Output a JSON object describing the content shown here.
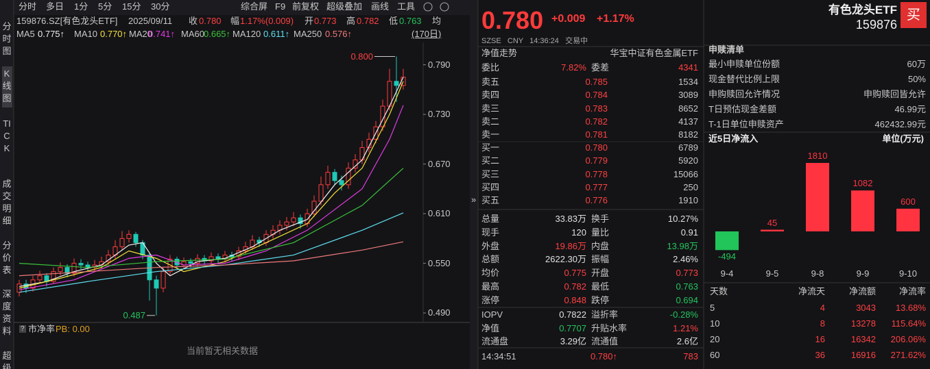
{
  "toolbar": {
    "periods": [
      "分时",
      "多日",
      "1分",
      "5分",
      "15分",
      "30分"
    ],
    "tools": [
      "综合屏",
      "F9",
      "前复权",
      "超级叠加",
      "画线",
      "工具"
    ]
  },
  "side_tabs": [
    "分时图",
    "K线图",
    "TICK",
    "成交明细",
    "分价表",
    "深度资料",
    "超级"
  ],
  "info_bar": {
    "code": "159876.SZ[有色龙头ETF]",
    "date": "2025/09/11",
    "items": [
      {
        "label": "收",
        "value": "0.780",
        "color": "#ff4040"
      },
      {
        "label": "幅",
        "value": "1.17%(0.009)",
        "color": "#ff4040"
      },
      {
        "label": "开",
        "value": "0.773",
        "color": "#ff4040"
      },
      {
        "label": "高",
        "value": "0.782",
        "color": "#ff4040"
      },
      {
        "label": "低",
        "value": "0.763",
        "color": "#25c45b"
      }
    ],
    "avg_label": "均",
    "bar_count": "(170日)"
  },
  "kline": {
    "type": "candlestick",
    "ylim": [
      0.481,
      0.817
    ],
    "yticks": [
      {
        "value": 0.79,
        "label": "0.790"
      },
      {
        "value": 0.73,
        "label": "0.730"
      },
      {
        "value": 0.67,
        "label": "0.670"
      },
      {
        "value": 0.61,
        "label": "0.610"
      },
      {
        "value": 0.55,
        "label": "0.550"
      },
      {
        "value": 0.49,
        "label": "0.490"
      }
    ],
    "up_color": "#ff3b3b",
    "down_color": "#1fc9b4",
    "open": [
      0.515,
      0.525,
      0.52,
      0.53,
      0.535,
      0.528,
      0.54,
      0.545,
      0.538,
      0.55,
      0.548,
      0.545,
      0.548,
      0.552,
      0.56,
      0.57,
      0.58,
      0.585,
      0.575,
      0.56,
      0.53,
      0.52,
      0.54,
      0.555,
      0.548,
      0.552,
      0.55,
      0.556,
      0.553,
      0.558,
      0.555,
      0.56,
      0.558,
      0.565,
      0.57,
      0.578,
      0.575,
      0.585,
      0.59,
      0.596,
      0.6,
      0.605,
      0.598,
      0.61,
      0.625,
      0.645,
      0.66,
      0.65,
      0.645,
      0.665,
      0.675,
      0.69,
      0.7,
      0.715,
      0.74,
      0.77,
      0.765
    ],
    "high": [
      0.53,
      0.53,
      0.535,
      0.541,
      0.538,
      0.545,
      0.551,
      0.549,
      0.556,
      0.555,
      0.552,
      0.554,
      0.558,
      0.566,
      0.578,
      0.589,
      0.59,
      0.588,
      0.578,
      0.562,
      0.535,
      0.546,
      0.56,
      0.558,
      0.557,
      0.556,
      0.561,
      0.56,
      0.563,
      0.562,
      0.565,
      0.564,
      0.57,
      0.576,
      0.584,
      0.582,
      0.59,
      0.596,
      0.602,
      0.606,
      0.612,
      0.609,
      0.616,
      0.632,
      0.655,
      0.668,
      0.664,
      0.656,
      0.672,
      0.682,
      0.698,
      0.708,
      0.722,
      0.748,
      0.785,
      0.8,
      0.785
    ],
    "low": [
      0.51,
      0.514,
      0.516,
      0.526,
      0.522,
      0.525,
      0.535,
      0.533,
      0.534,
      0.543,
      0.54,
      0.541,
      0.543,
      0.548,
      0.556,
      0.566,
      0.575,
      0.57,
      0.555,
      0.505,
      0.487,
      0.515,
      0.536,
      0.543,
      0.544,
      0.545,
      0.546,
      0.548,
      0.549,
      0.55,
      0.551,
      0.553,
      0.554,
      0.561,
      0.566,
      0.57,
      0.571,
      0.58,
      0.585,
      0.59,
      0.595,
      0.592,
      0.594,
      0.606,
      0.62,
      0.64,
      0.644,
      0.638,
      0.64,
      0.66,
      0.67,
      0.684,
      0.695,
      0.71,
      0.735,
      0.745,
      0.76
    ],
    "close": [
      0.525,
      0.52,
      0.53,
      0.535,
      0.528,
      0.54,
      0.545,
      0.538,
      0.55,
      0.548,
      0.545,
      0.548,
      0.552,
      0.56,
      0.57,
      0.58,
      0.585,
      0.575,
      0.56,
      0.53,
      0.52,
      0.54,
      0.555,
      0.548,
      0.552,
      0.55,
      0.556,
      0.553,
      0.558,
      0.555,
      0.56,
      0.558,
      0.565,
      0.57,
      0.578,
      0.575,
      0.585,
      0.59,
      0.596,
      0.6,
      0.605,
      0.598,
      0.61,
      0.625,
      0.645,
      0.66,
      0.65,
      0.645,
      0.665,
      0.675,
      0.69,
      0.7,
      0.715,
      0.74,
      0.77,
      0.765,
      0.775
    ],
    "max_label": "0.800",
    "min_label": "0.487",
    "ma": [
      {
        "name": "MA5",
        "legend": "0.775↑",
        "color": "#f0f0f0",
        "x": [
          0,
          4,
          8,
          12,
          16,
          18,
          20,
          22,
          26,
          30,
          34,
          38,
          42,
          46,
          50,
          54,
          56
        ],
        "values": [
          0.522,
          0.528,
          0.54,
          0.548,
          0.572,
          0.575,
          0.55,
          0.535,
          0.552,
          0.556,
          0.57,
          0.59,
          0.603,
          0.645,
          0.675,
          0.74,
          0.775
        ]
      },
      {
        "name": "MA10",
        "legend": "0.770↑",
        "color": "#f5e23a",
        "x": [
          0,
          6,
          12,
          16,
          20,
          24,
          30,
          36,
          42,
          46,
          50,
          54,
          56
        ],
        "values": [
          0.52,
          0.532,
          0.545,
          0.565,
          0.556,
          0.54,
          0.552,
          0.575,
          0.598,
          0.635,
          0.665,
          0.73,
          0.77
        ]
      },
      {
        "name": "MA20",
        "legend": "0.741↑",
        "color": "#e23be2",
        "x": [
          0,
          8,
          16,
          20,
          24,
          30,
          36,
          42,
          46,
          50,
          54,
          56
        ],
        "values": [
          0.518,
          0.53,
          0.556,
          0.56,
          0.548,
          0.55,
          0.565,
          0.59,
          0.615,
          0.64,
          0.7,
          0.741
        ]
      },
      {
        "name": "MA60",
        "legend": "0.665↑",
        "color": "#3bc43b",
        "x": [
          0,
          10,
          20,
          30,
          40,
          50,
          56
        ],
        "values": [
          0.55,
          0.545,
          0.552,
          0.555,
          0.575,
          0.62,
          0.665
        ]
      },
      {
        "name": "MA120",
        "legend": "0.611↑",
        "color": "#5fe0f0",
        "x": [
          0,
          10,
          20,
          30,
          40,
          50,
          56
        ],
        "values": [
          0.515,
          0.528,
          0.54,
          0.548,
          0.56,
          0.59,
          0.611
        ]
      },
      {
        "name": "MA250",
        "legend": "0.576↑",
        "color": "#f07a7a",
        "x": [
          0,
          10,
          20,
          30,
          40,
          50,
          56
        ],
        "values": [
          0.535,
          0.54,
          0.545,
          0.548,
          0.553,
          0.566,
          0.576
        ]
      }
    ]
  },
  "lower_pane": {
    "help": "?",
    "title": "市净率",
    "pb": "PB: 0.00",
    "empty": "当前暂无相关数据"
  },
  "collapse_icon": "»",
  "quote": {
    "price": "0.780",
    "change": "+0.009",
    "pct": "+1.17%",
    "status": "SZSE   CNY   14:36:24   交易中",
    "name": "有色龙头ETF",
    "code": "159876",
    "buy": "买"
  },
  "order_book": {
    "header_left": "净值走势",
    "header_right": "华宝中证有色金属ETF",
    "ratio": [
      "委比",
      "7.82%",
      "委差",
      "4341"
    ],
    "asks": [
      [
        "卖五",
        "0.785",
        "1534"
      ],
      [
        "卖四",
        "0.784",
        "3089"
      ],
      [
        "卖三",
        "0.783",
        "8652"
      ],
      [
        "卖二",
        "0.782",
        "4137"
      ],
      [
        "卖一",
        "0.781",
        "8182"
      ]
    ],
    "bids": [
      [
        "买一",
        "0.780",
        "6789"
      ],
      [
        "买二",
        "0.779",
        "5920"
      ],
      [
        "买三",
        "0.778",
        "15066"
      ],
      [
        "买四",
        "0.777",
        "250"
      ],
      [
        "买五",
        "0.776",
        "1910"
      ]
    ],
    "stats": [
      {
        "cells": [
          "总量",
          "33.83万",
          "换手",
          "10.27%"
        ],
        "colors": [
          "#e0e0e0",
          "#e0e0e0"
        ]
      },
      {
        "cells": [
          "现手",
          "120",
          "量比",
          "0.91"
        ],
        "colors": [
          "#e0e0e0",
          "#e0e0e0"
        ]
      },
      {
        "cells": [
          "外盘",
          "19.86万",
          "内盘",
          "13.98万"
        ],
        "colors": [
          "#ff4040",
          "#25c45b"
        ]
      },
      {
        "cells": [
          "总额",
          "2622.30万",
          "振幅",
          "2.46%"
        ],
        "colors": [
          "#e0e0e0",
          "#e0e0e0"
        ]
      },
      {
        "cells": [
          "均价",
          "0.775",
          "开盘",
          "0.773"
        ],
        "colors": [
          "#ff4040",
          "#ff4040"
        ]
      },
      {
        "cells": [
          "最高",
          "0.782",
          "最低",
          "0.763"
        ],
        "colors": [
          "#ff4040",
          "#25c45b"
        ]
      },
      {
        "cells": [
          "涨停",
          "0.848",
          "跌停",
          "0.694"
        ],
        "colors": [
          "#ff4040",
          "#25c45b"
        ]
      }
    ],
    "nav": [
      {
        "cells": [
          "IOPV",
          "0.7822",
          "溢折率",
          "-0.28%"
        ],
        "colors": [
          "#e0e0e0",
          "#25c45b"
        ]
      },
      {
        "cells": [
          "净值",
          "0.7707",
          "升贴水率",
          "1.21%"
        ],
        "colors": [
          "#25c45b",
          "#ff4040"
        ]
      },
      {
        "cells": [
          "流通盘",
          "3.29亿",
          "流通值",
          "2.6亿"
        ],
        "colors": [
          "#e0e0e0",
          "#e0e0e0"
        ]
      }
    ],
    "tick": [
      "14:34:51",
      "0.780↑",
      "783"
    ]
  },
  "creation": {
    "title": "申赎清单",
    "rows": [
      [
        "最小申赎单位份额",
        "60万"
      ],
      [
        "现金替代比例上限",
        "50%"
      ],
      [
        "申购赎回允许情况",
        "申购赎回皆允许"
      ],
      [
        "T日预估现金差额",
        "46.99元"
      ],
      [
        "T-1日单位申赎资产",
        "462432.99元"
      ]
    ]
  },
  "flow_chart": {
    "type": "bar",
    "title": "近5日净流入",
    "unit": "单位(万元)",
    "categories": [
      "9-4",
      "9-5",
      "9-8",
      "9-9",
      "9-10"
    ],
    "values": [
      -494,
      45,
      1810,
      1082,
      600
    ],
    "up_color": "#ff3440",
    "down_color": "#22c55a"
  },
  "flow_table": {
    "header": [
      "天数",
      "净流天",
      "净流额",
      "净流率"
    ],
    "rows": [
      [
        "5",
        "4",
        "3043",
        "13.68%"
      ],
      [
        "10",
        "8",
        "13278",
        "115.64%"
      ],
      [
        "20",
        "16",
        "16342",
        "206.06%"
      ],
      [
        "60",
        "36",
        "16916",
        "271.62%"
      ]
    ],
    "colors": [
      "#c8c8c8",
      "#ff4040",
      "#ff4040",
      "#ff4040"
    ]
  }
}
